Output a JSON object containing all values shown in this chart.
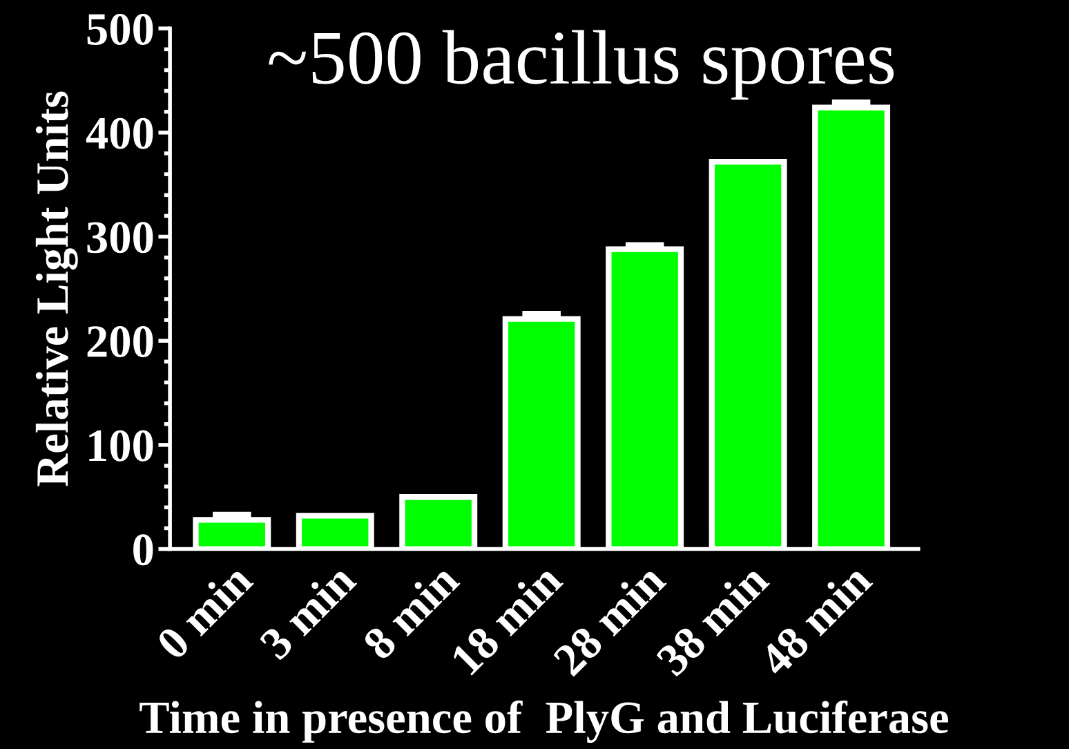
{
  "chart_data": {
    "type": "bar",
    "title": "~500 bacillus spores",
    "xlabel": "Time in presence of  PlyG and Luciferase",
    "ylabel": "Relative Light Units",
    "categories": [
      "0 min",
      "3 min",
      "8 min",
      "18 min",
      "28 min",
      "38 min",
      "48 min"
    ],
    "values": [
      28,
      32,
      50,
      221,
      288,
      372,
      424
    ],
    "errors": [
      [
        28,
        33
      ],
      null,
      null,
      [
        221,
        226
      ],
      [
        288,
        292
      ],
      null,
      [
        424,
        429
      ]
    ],
    "color": "#00ff00",
    "ylim": [
      0,
      500
    ],
    "yticks": [
      0,
      100,
      200,
      300,
      400,
      500
    ],
    "grid": false,
    "legend": false
  }
}
